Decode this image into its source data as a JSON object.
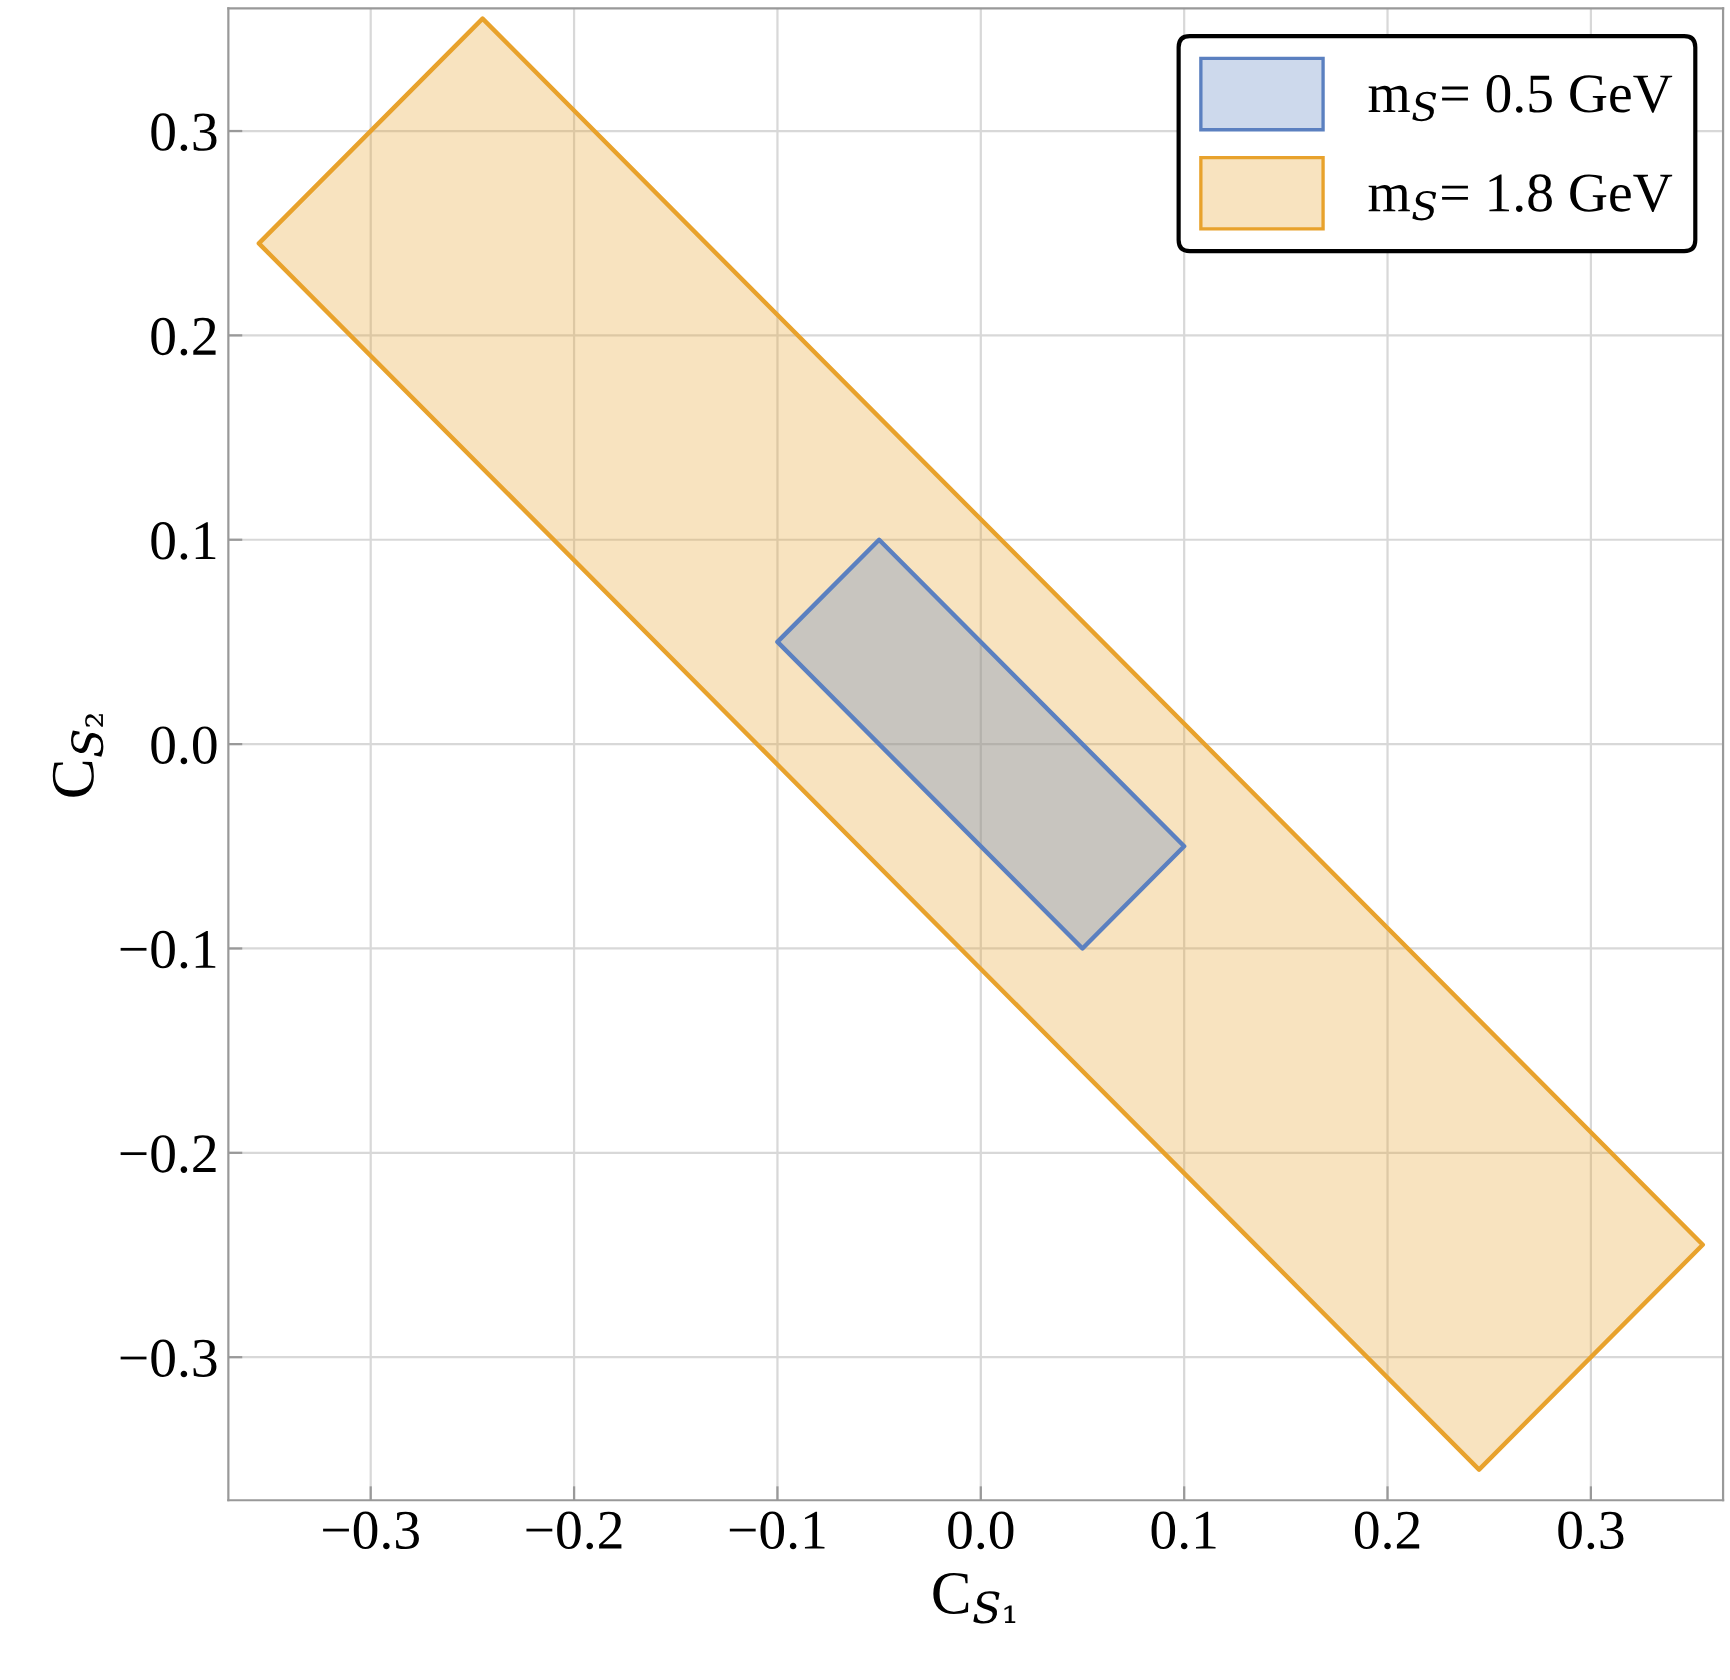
{
  "chart_data": {
    "type": "area",
    "xlabel": "C$_{S₁}$",
    "ylabel": "C$_{S₂}$",
    "series": [
      {
        "name": "m$_{S}$= 0.5 GeV",
        "color": "#5b80c0",
        "x": [
          -0.1,
          -0.05,
          0.1,
          0.05,
          -0.1
        ],
        "values": [
          0.05,
          0.1,
          -0.05,
          -0.1,
          0.05
        ]
      },
      {
        "name": "m$_{S}$= 1.8 GeV",
        "color": "#e8a22c",
        "x": [
          -0.355,
          -0.245,
          0.355,
          0.245,
          -0.355
        ],
        "values": [
          0.245,
          0.355,
          -0.245,
          -0.355,
          0.245
        ]
      }
    ],
    "xlim": [
      -0.37,
      0.365
    ],
    "ylim": [
      -0.37,
      0.36
    ],
    "xticks": [
      {
        "value": -0.3,
        "label": "−0.3"
      },
      {
        "value": -0.2,
        "label": "−0.2"
      },
      {
        "value": -0.1,
        "label": "−0.1"
      },
      {
        "value": 0.0,
        "label": "0.0"
      },
      0.1,
      0.2,
      0.3
    ],
    "yticks": [
      {
        "value": -0.3,
        "label": "−0.3"
      },
      {
        "value": -0.2,
        "label": "−0.2"
      },
      {
        "value": -0.1,
        "label": "−0.1"
      },
      {
        "value": 0.0,
        "label": "0.0"
      },
      0.1,
      0.2,
      0.3
    ],
    "grid": true,
    "legend": "top right"
  }
}
